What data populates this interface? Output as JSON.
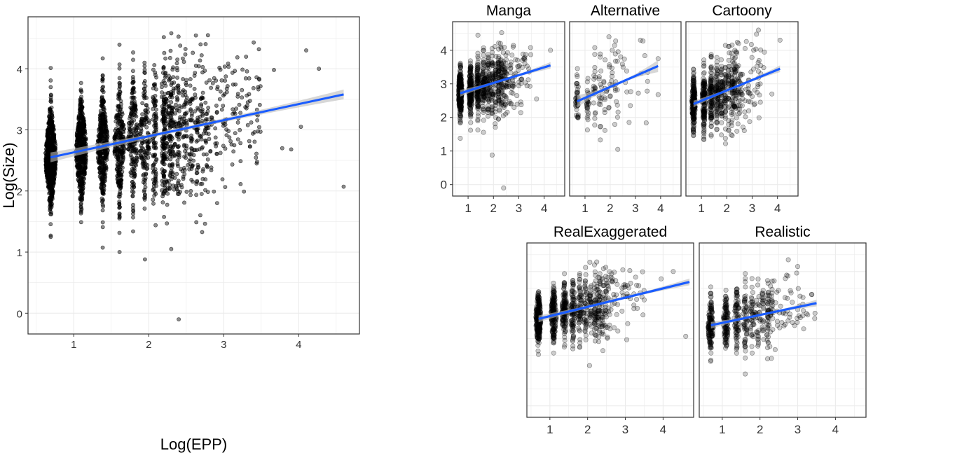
{
  "colors": {
    "fit_line": "#1a5cff",
    "ribbon": "#bdbdbd",
    "points": "#000000",
    "grid": "#ebebeb",
    "border": "#333333"
  },
  "chart_data": [
    {
      "type": "scatter",
      "title": "",
      "xlabel": "Log(EPP)",
      "ylabel": "Log(Size)",
      "xlim": [
        0.39,
        4.81
      ],
      "ylim": [
        -0.34,
        4.85
      ],
      "xticks": [
        "1",
        "2",
        "3",
        "4"
      ],
      "yticks": [
        "0",
        "1",
        "2",
        "3",
        "4"
      ],
      "grid": true,
      "point_alpha": 0.45,
      "fit": {
        "x": [
          0.69,
          4.6
        ],
        "y": [
          2.55,
          3.58
        ],
        "se_band": true
      },
      "point_cloud": {
        "column_n": [
          2,
          3,
          4,
          5,
          6,
          7,
          8,
          9,
          10,
          11,
          12,
          13,
          14,
          15,
          16
        ],
        "density": 1.0,
        "sd": 0.48,
        "y_range": [
          0.9,
          4.6
        ]
      },
      "notable_points": [
        {
          "x": 2.4,
          "y": -0.1
        },
        {
          "x": 1.95,
          "y": 0.88
        },
        {
          "x": 4.6,
          "y": 2.07
        },
        {
          "x": 4.1,
          "y": 4.3
        },
        {
          "x": 4.27,
          "y": 4.0
        },
        {
          "x": 4.03,
          "y": 3.05
        },
        {
          "x": 2.3,
          "y": 1.05
        },
        {
          "x": 1.61,
          "y": 1.0
        },
        {
          "x": 3.78,
          "y": 2.7
        },
        {
          "x": 3.9,
          "y": 2.68
        },
        {
          "x": 3.44,
          "y": 2.45
        },
        {
          "x": 3.27,
          "y": 1.99
        },
        {
          "x": 3.4,
          "y": 4.43
        },
        {
          "x": 3.67,
          "y": 3.98
        }
      ]
    },
    {
      "type": "scatter",
      "title": "Manga",
      "xlim": [
        0.39,
        4.81
      ],
      "ylim": [
        -0.34,
        4.85
      ],
      "xticks": [
        "1",
        "2",
        "3",
        "4"
      ],
      "yticks": [
        "0",
        "1",
        "2",
        "3",
        "4"
      ],
      "grid": true,
      "point_alpha": 0.2,
      "fit": {
        "x": [
          0.69,
          4.25
        ],
        "y": [
          2.72,
          3.55
        ],
        "se_band": true
      },
      "point_cloud": {
        "column_n": [
          2,
          3,
          4,
          5,
          6,
          7,
          8,
          9,
          10,
          11,
          12
        ],
        "density": 0.35,
        "sd": 0.45,
        "y_range": [
          1.2,
          4.6
        ]
      },
      "notable_points": [
        {
          "x": 2.4,
          "y": -0.1
        },
        {
          "x": 1.95,
          "y": 0.88
        },
        {
          "x": 4.25,
          "y": 4.0
        },
        {
          "x": 3.7,
          "y": 2.55
        },
        {
          "x": 3.47,
          "y": 3.87
        },
        {
          "x": 0.69,
          "y": 1.38
        }
      ]
    },
    {
      "type": "scatter",
      "title": "Alternative",
      "xlim": [
        0.39,
        4.81
      ],
      "ylim": [
        -0.34,
        4.85
      ],
      "xticks": [
        "1",
        "2",
        "3",
        "4"
      ],
      "grid": true,
      "point_alpha": 0.2,
      "fit": {
        "x": [
          0.69,
          3.9
        ],
        "y": [
          2.48,
          3.53
        ],
        "se_band": true
      },
      "point_cloud": {
        "column_n": [
          2,
          3,
          4,
          5,
          6,
          7,
          8,
          9,
          10
        ],
        "density": 0.06,
        "sd": 0.5,
        "y_range": [
          1.3,
          4.4
        ]
      },
      "notable_points": [
        {
          "x": 2.3,
          "y": 1.05
        },
        {
          "x": 1.61,
          "y": 1.33
        },
        {
          "x": 3.9,
          "y": 2.68
        },
        {
          "x": 3.2,
          "y": 4.3
        },
        {
          "x": 1.95,
          "y": 4.4
        },
        {
          "x": 3.9,
          "y": 3.75
        },
        {
          "x": 2.75,
          "y": 1.85
        },
        {
          "x": 2.8,
          "y": 2.35
        }
      ]
    },
    {
      "type": "scatter",
      "title": "Cartoony",
      "xlim": [
        0.39,
        4.81
      ],
      "ylim": [
        -0.34,
        4.85
      ],
      "xticks": [
        "1",
        "2",
        "3",
        "4"
      ],
      "grid": true,
      "point_alpha": 0.2,
      "fit": {
        "x": [
          0.69,
          4.1
        ],
        "y": [
          2.4,
          3.45
        ],
        "se_band": true
      },
      "point_cloud": {
        "column_n": [
          2,
          3,
          4,
          5,
          6,
          7,
          8,
          9,
          10,
          11,
          12
        ],
        "density": 0.3,
        "sd": 0.5,
        "y_range": [
          1.05,
          4.6
        ]
      },
      "notable_points": [
        {
          "x": 4.1,
          "y": 4.3
        },
        {
          "x": 3.78,
          "y": 2.7
        },
        {
          "x": 3.25,
          "y": 4.6
        },
        {
          "x": 1.95,
          "y": 1.22
        },
        {
          "x": 3.27,
          "y": 1.99
        }
      ]
    },
    {
      "type": "scatter",
      "title": "RealExaggerated",
      "xlim": [
        0.39,
        4.81
      ],
      "ylim": [
        -0.34,
        4.85
      ],
      "xticks": [
        "1",
        "2",
        "3",
        "4"
      ],
      "grid": true,
      "point_alpha": 0.2,
      "fit": {
        "x": [
          0.7,
          4.7
        ],
        "y": [
          2.59,
          3.69
        ],
        "se_band": true
      },
      "point_cloud": {
        "column_n": [
          2,
          3,
          4,
          5,
          6,
          7,
          8,
          9,
          10,
          11,
          12
        ],
        "density": 0.35,
        "sd": 0.45,
        "y_range": [
          1.2,
          4.6
        ]
      },
      "notable_points": [
        {
          "x": 4.6,
          "y": 2.07
        },
        {
          "x": 4.27,
          "y": 4.0
        },
        {
          "x": 3.95,
          "y": 3.78
        },
        {
          "x": 2.05,
          "y": 1.2
        }
      ]
    },
    {
      "type": "scatter",
      "title": "Realistic",
      "xlim": [
        0.39,
        4.81
      ],
      "ylim": [
        -0.34,
        4.85
      ],
      "xticks": [
        "1",
        "2",
        "3",
        "4"
      ],
      "grid": true,
      "point_alpha": 0.2,
      "fit": {
        "x": [
          0.7,
          3.5
        ],
        "y": [
          2.4,
          3.06
        ],
        "se_band": true
      },
      "point_cloud": {
        "column_n": [
          2,
          3,
          4,
          5,
          6,
          7,
          8,
          9,
          10
        ],
        "density": 0.22,
        "sd": 0.48,
        "y_range": [
          1.3,
          4.5
        ]
      },
      "notable_points": [
        {
          "x": 1.61,
          "y": 0.95
        },
        {
          "x": 3.45,
          "y": 2.6
        },
        {
          "x": 2.75,
          "y": 4.35
        },
        {
          "x": 3.0,
          "y": 4.15
        }
      ]
    }
  ]
}
